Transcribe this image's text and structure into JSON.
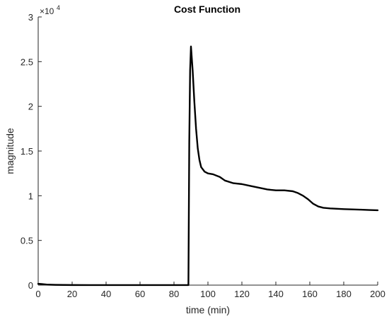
{
  "chart_data": {
    "type": "line",
    "title": "Cost Function",
    "xlabel": "time (min)",
    "ylabel": "magnitude",
    "xlim": [
      0,
      200
    ],
    "ylim": [
      0,
      30000
    ],
    "x_ticks": [
      0,
      20,
      40,
      60,
      80,
      100,
      120,
      140,
      160,
      180,
      200
    ],
    "x_tick_labels": [
      "0",
      "20",
      "40",
      "60",
      "80",
      "100",
      "120",
      "140",
      "160",
      "180",
      "200"
    ],
    "y_ticks": [
      0,
      5000,
      10000,
      15000,
      20000,
      25000,
      30000
    ],
    "y_tick_labels": [
      "0",
      "0.5",
      "1",
      "1.5",
      "2",
      "2.5",
      "3"
    ],
    "y_exponent": {
      "base": "×10",
      "power": "4"
    },
    "grid": false,
    "colors": {
      "line": "#000000",
      "axis": "#262626"
    },
    "series": [
      {
        "x": [
          0,
          2,
          5,
          10,
          20,
          30,
          40,
          50,
          60,
          70,
          80,
          88.5,
          89,
          89.5,
          90,
          91,
          92,
          93,
          94,
          95,
          96,
          98,
          100,
          103,
          107,
          110,
          115,
          120,
          125,
          130,
          135,
          140,
          145,
          150,
          153,
          156,
          159,
          162,
          165,
          168,
          172,
          176,
          180,
          185,
          190,
          195,
          200
        ],
        "y": [
          150,
          120,
          60,
          30,
          10,
          5,
          5,
          5,
          5,
          5,
          5,
          5,
          16000,
          24000,
          26700,
          24000,
          20500,
          17500,
          15300,
          14000,
          13200,
          12700,
          12500,
          12400,
          12100,
          11700,
          11400,
          11300,
          11100,
          10900,
          10700,
          10600,
          10600,
          10500,
          10300,
          10000,
          9600,
          9100,
          8800,
          8650,
          8580,
          8540,
          8500,
          8470,
          8440,
          8400,
          8370
        ]
      }
    ]
  }
}
